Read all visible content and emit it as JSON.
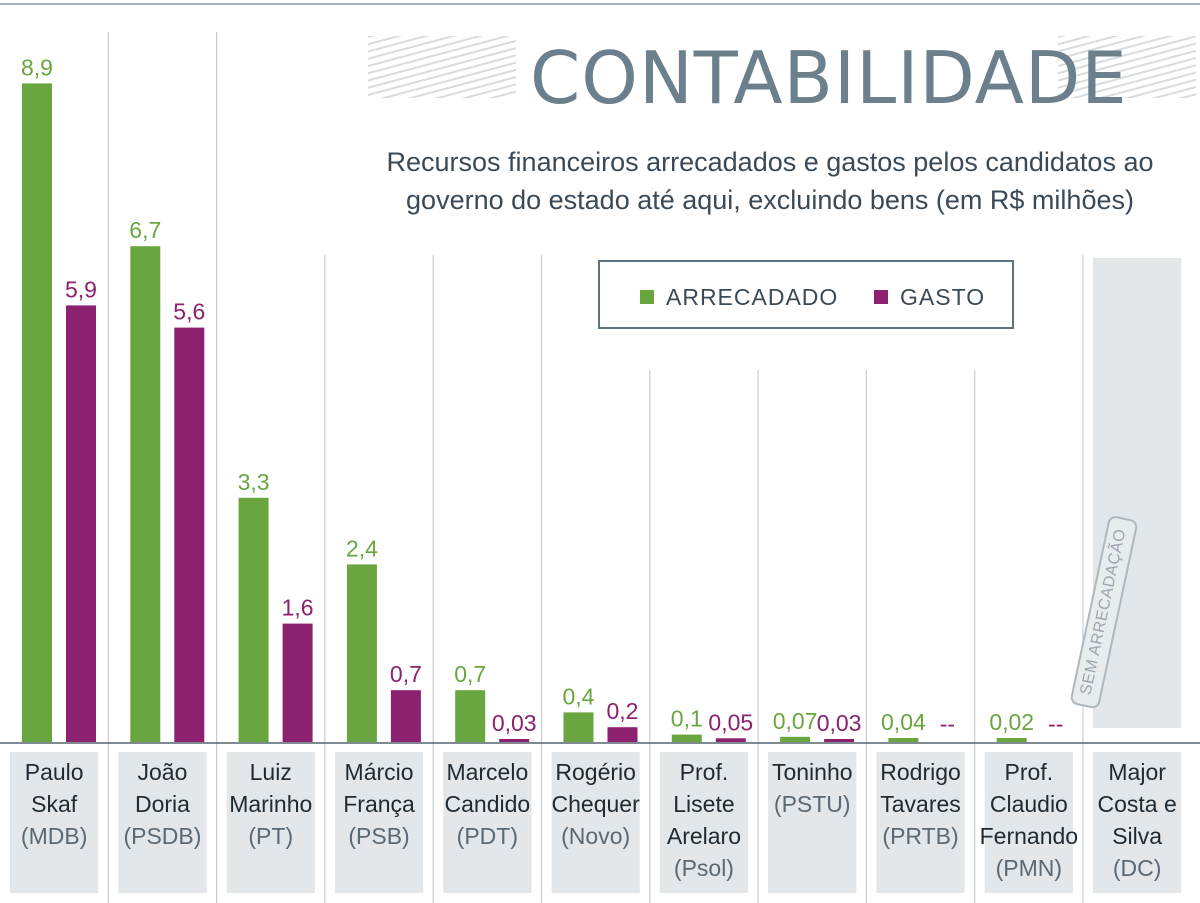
{
  "header": {
    "title": "CONTABILIDADE",
    "subtitle_line1": "Recursos financeiros arrecadados e gastos pelos candidatos ao",
    "subtitle_line2": "governo do estado até aqui, excluindo bens (em R$ milhões)"
  },
  "legend": {
    "arrecadado": "ARRECADADO",
    "gasto": "GASTO"
  },
  "colors": {
    "arrecadado": "#6aa640",
    "gasto": "#8b216f",
    "panel": "#e3e7e9",
    "axis": "#55646f"
  },
  "chart_data": {
    "type": "bar",
    "title": "CONTABILIDADE",
    "subtitle": "Recursos financeiros arrecadados e gastos pelos candidatos ao governo do estado até aqui, excluindo bens (em R$ milhões)",
    "ylabel": "R$ milhões",
    "ylim": [
      0,
      9
    ],
    "candidates": [
      {
        "lines": [
          "Paulo",
          "Skaf",
          "(MDB)"
        ],
        "arrecadado": 8.9,
        "arrecadado_label": "8,9",
        "gasto": 5.9,
        "gasto_label": "5,9"
      },
      {
        "lines": [
          "João",
          "Doria",
          "(PSDB)"
        ],
        "arrecadado": 6.7,
        "arrecadado_label": "6,7",
        "gasto": 5.6,
        "gasto_label": "5,6"
      },
      {
        "lines": [
          "Luiz",
          "Marinho",
          "(PT)"
        ],
        "arrecadado": 3.3,
        "arrecadado_label": "3,3",
        "gasto": 1.6,
        "gasto_label": "1,6"
      },
      {
        "lines": [
          "Márcio",
          "França",
          "(PSB)"
        ],
        "arrecadado": 2.4,
        "arrecadado_label": "2,4",
        "gasto": 0.7,
        "gasto_label": "0,7"
      },
      {
        "lines": [
          "Marcelo",
          "Candido",
          "(PDT)"
        ],
        "arrecadado": 0.7,
        "arrecadado_label": "0,7",
        "gasto": 0.03,
        "gasto_label": "0,03"
      },
      {
        "lines": [
          "Rogério",
          "Chequer",
          "(Novo)"
        ],
        "arrecadado": 0.4,
        "arrecadado_label": "0,4",
        "gasto": 0.2,
        "gasto_label": "0,2"
      },
      {
        "lines": [
          "Prof.",
          "Lisete",
          "Arelaro",
          "(Psol)"
        ],
        "arrecadado": 0.1,
        "arrecadado_label": "0,1",
        "gasto": 0.05,
        "gasto_label": "0,05"
      },
      {
        "lines": [
          "Toninho",
          "(PSTU)"
        ],
        "arrecadado": 0.07,
        "arrecadado_label": "0,07",
        "gasto": 0.03,
        "gasto_label": "0,03"
      },
      {
        "lines": [
          "Rodrigo",
          "Tavares",
          "(PRTB)"
        ],
        "arrecadado": 0.04,
        "arrecadado_label": "0,04",
        "gasto": null,
        "gasto_label": "--"
      },
      {
        "lines": [
          "Prof.",
          "Claudio",
          "Fernando",
          "(PMN)"
        ],
        "arrecadado": 0.02,
        "arrecadado_label": "0,02",
        "gasto": null,
        "gasto_label": "--"
      },
      {
        "lines": [
          "Major",
          "Costa e",
          "Silva",
          "(DC)"
        ],
        "arrecadado": null,
        "arrecadado_label": "",
        "gasto": null,
        "gasto_label": "",
        "note": "SEM ARRECADAÇÃO"
      }
    ]
  }
}
